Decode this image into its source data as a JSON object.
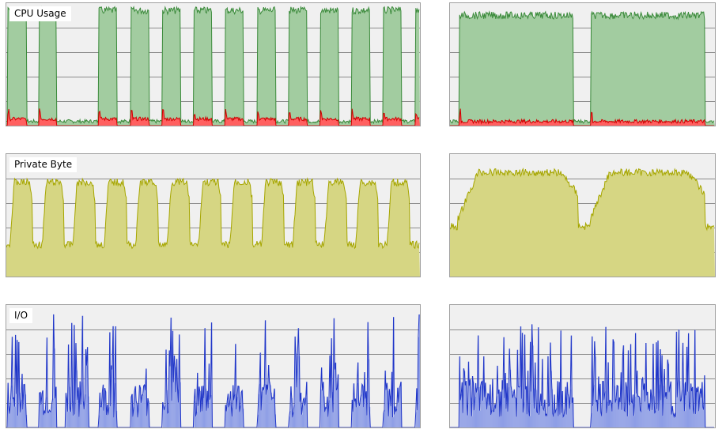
{
  "titles": {
    "cpu": "CPU Usage",
    "mem": "Private Byte",
    "io": "I/O"
  },
  "colors": {
    "background": "#f0f0f0",
    "gridline": "#8c8c8c",
    "cpu_fill": "#a2cca0",
    "cpu_line": "#3a8a3a",
    "cpu_kernel_fill": "#ff6060",
    "cpu_kernel_line": "#d00000",
    "mem_fill": "#d6d683",
    "mem_line": "#a6a600",
    "io_fill": "#8e9ee6",
    "io_line": "#1f35c8"
  },
  "chart_data": [
    {
      "name": "cpu-left",
      "type": "area",
      "ylim": [
        0,
        100
      ],
      "samples": 500,
      "on_periods": [
        [
          2,
          25
        ],
        [
          40,
          61
        ],
        [
          112,
          134
        ],
        [
          151,
          173
        ],
        [
          189,
          211
        ],
        [
          227,
          249
        ],
        [
          265,
          287
        ],
        [
          304,
          326
        ],
        [
          342,
          364
        ],
        [
          380,
          402
        ],
        [
          418,
          440
        ],
        [
          456,
          478
        ],
        [
          495,
          500
        ]
      ],
      "high_level": 97,
      "kernel_level": 4
    },
    {
      "name": "cpu-right",
      "type": "area",
      "ylim": [
        0,
        100
      ],
      "samples": 330,
      "on_periods": [
        [
          12,
          154
        ],
        [
          176,
          318
        ]
      ],
      "high_level": 93,
      "kernel_level": 2
    },
    {
      "name": "mem-left",
      "type": "area",
      "ylim": [
        0,
        100
      ],
      "samples": 500,
      "on_periods": [
        [
          5,
          32
        ],
        [
          44,
          70
        ],
        [
          81,
          108
        ],
        [
          119,
          146
        ],
        [
          157,
          184
        ],
        [
          195,
          222
        ],
        [
          233,
          260
        ],
        [
          271,
          298
        ],
        [
          309,
          336
        ],
        [
          347,
          374
        ],
        [
          385,
          412
        ],
        [
          423,
          450
        ],
        [
          461,
          488
        ]
      ],
      "high_level": 80,
      "low_level": 35
    },
    {
      "name": "mem-right",
      "type": "area",
      "ylim": [
        0,
        100
      ],
      "samples": 330,
      "on_periods": [
        [
          10,
          160
        ],
        [
          175,
          318
        ]
      ],
      "high_level": 88,
      "low_level": 50
    },
    {
      "name": "io-left",
      "type": "bar",
      "ylim": [
        0,
        100
      ],
      "samples": 500,
      "on_periods": [
        [
          2,
          25
        ],
        [
          40,
          61
        ],
        [
          72,
          100
        ],
        [
          112,
          134
        ],
        [
          151,
          173
        ],
        [
          189,
          211
        ],
        [
          227,
          249
        ],
        [
          265,
          287
        ],
        [
          304,
          326
        ],
        [
          342,
          364
        ],
        [
          380,
          402
        ],
        [
          418,
          440
        ],
        [
          456,
          478
        ],
        [
          495,
          500
        ]
      ],
      "peak": 95
    },
    {
      "name": "io-right",
      "type": "bar",
      "ylim": [
        0,
        100
      ],
      "samples": 330,
      "on_periods": [
        [
          12,
          154
        ],
        [
          176,
          318
        ]
      ],
      "peak": 85
    }
  ]
}
